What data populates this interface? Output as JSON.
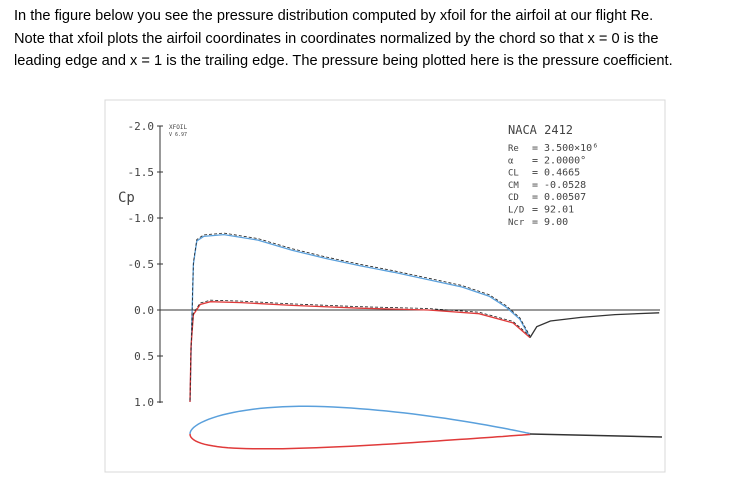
{
  "paragraph": [
    "In the figure below you see the pressure distribution computed by xfoil for the airfoil at our flight Re.",
    "Note that xfoil plots the airfoil coordinates in coordinates normalized by the chord so that x = 0 is the",
    "leading edge and x = 1 is the trailing edge. The pressure being plotted here is the pressure coefficient."
  ],
  "figure": {
    "program": "XFOIL",
    "version": "V 6.97",
    "ylabel": "Cp",
    "yticks": [
      "-2.0",
      "-1.5",
      "-1.0",
      "-0.5",
      "0.0",
      "0.5",
      "1.0"
    ],
    "airfoil": "NACA 2412",
    "params": [
      {
        "label": "Re",
        "value": "= 3.500×10⁶"
      },
      {
        "label": "α",
        "value": "= 2.0000°"
      },
      {
        "label": "CL",
        "value": "= 0.4665"
      },
      {
        "label": "CM",
        "value": "= -0.0528"
      },
      {
        "label": "CD",
        "value": "= 0.00507"
      },
      {
        "label": "L/D",
        "value": "= 92.01"
      },
      {
        "label": "Ncr",
        "value": "= 9.00"
      }
    ],
    "colors": {
      "upper": "#5aa0dc",
      "lower": "#e03a3a",
      "inviscid": "#222222",
      "axis": "#333333"
    }
  },
  "chart_data": {
    "type": "line",
    "ylabel": "Cp",
    "ylim": [
      -2.0,
      1.0
    ],
    "y_inverted": true,
    "series": [
      {
        "surface": "upper",
        "points": [
          [
            0,
            1.0
          ],
          [
            0.005,
            0.2
          ],
          [
            0.01,
            -0.5
          ],
          [
            0.02,
            -0.75
          ],
          [
            0.04,
            -0.8
          ],
          [
            0.1,
            -0.82
          ],
          [
            0.2,
            -0.76
          ],
          [
            0.3,
            -0.65
          ],
          [
            0.4,
            -0.56
          ],
          [
            0.5,
            -0.48
          ],
          [
            0.6,
            -0.41
          ],
          [
            0.7,
            -0.33
          ],
          [
            0.8,
            -0.25
          ],
          [
            0.88,
            -0.15
          ],
          [
            0.93,
            -0.03
          ],
          [
            0.97,
            0.1
          ],
          [
            1.0,
            0.3
          ]
        ]
      },
      {
        "surface": "lower",
        "points": [
          [
            0,
            1.0
          ],
          [
            0.003,
            0.4
          ],
          [
            0.01,
            0.05
          ],
          [
            0.03,
            -0.06
          ],
          [
            0.06,
            -0.09
          ],
          [
            0.15,
            -0.08
          ],
          [
            0.3,
            -0.05
          ],
          [
            0.5,
            -0.02
          ],
          [
            0.7,
            0.0
          ],
          [
            0.85,
            0.04
          ],
          [
            0.95,
            0.14
          ],
          [
            1.0,
            0.3
          ]
        ]
      },
      {
        "surface": "wake",
        "points": [
          [
            1.0,
            0.3
          ],
          [
            1.02,
            0.18
          ],
          [
            1.06,
            0.12
          ],
          [
            1.15,
            0.08
          ],
          [
            1.25,
            0.05
          ],
          [
            1.38,
            0.03
          ]
        ]
      }
    ]
  }
}
